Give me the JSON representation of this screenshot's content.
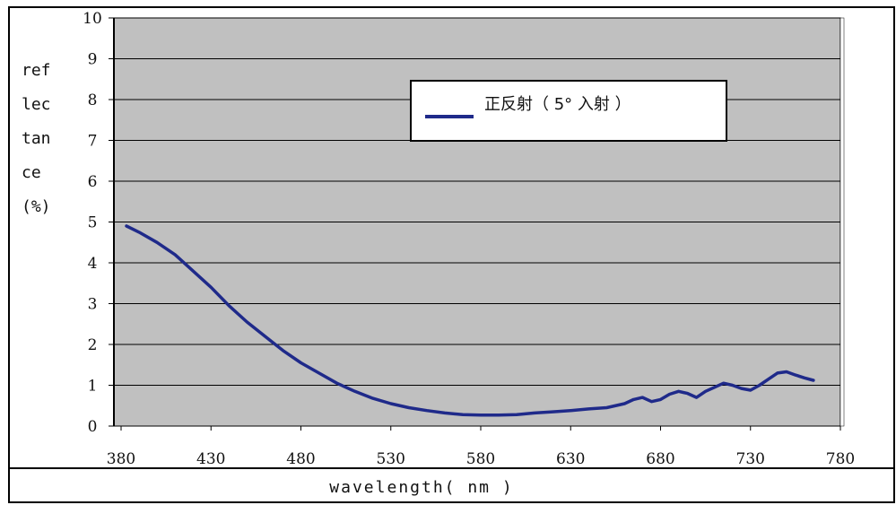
{
  "chart_data": {
    "type": "line",
    "xlabel": "wavelength( nm )",
    "ylabel_lines": [
      "ref",
      "lec",
      "tan",
      "ce",
      "(%)"
    ],
    "xlim": [
      380,
      780
    ],
    "ylim": [
      0,
      10
    ],
    "x_ticks": [
      380,
      430,
      480,
      530,
      580,
      630,
      680,
      730,
      780
    ],
    "y_ticks": [
      0,
      1,
      2,
      3,
      4,
      5,
      6,
      7,
      8,
      9,
      10
    ],
    "y_tick_labels": [
      "0",
      "1",
      "2",
      "3",
      "4",
      "5",
      "6",
      "7",
      "8",
      "9",
      "10"
    ],
    "grid": "horizontal",
    "background": "#c0c0c0",
    "legend_position": "top-right",
    "series": [
      {
        "name": "正反射（ 5° 入射 ）",
        "color": "#1f2a8a",
        "x": [
          383,
          390,
          400,
          410,
          420,
          430,
          440,
          450,
          460,
          470,
          480,
          490,
          500,
          510,
          520,
          530,
          540,
          550,
          560,
          570,
          580,
          590,
          600,
          610,
          620,
          630,
          640,
          650,
          660,
          665,
          670,
          675,
          680,
          685,
          690,
          695,
          700,
          705,
          710,
          715,
          720,
          725,
          730,
          735,
          740,
          745,
          750,
          755,
          760,
          765
        ],
        "y": [
          4.9,
          4.75,
          4.5,
          4.2,
          3.8,
          3.4,
          2.95,
          2.55,
          2.2,
          1.85,
          1.55,
          1.3,
          1.05,
          0.85,
          0.68,
          0.55,
          0.45,
          0.38,
          0.32,
          0.28,
          0.27,
          0.27,
          0.28,
          0.32,
          0.35,
          0.38,
          0.42,
          0.45,
          0.55,
          0.65,
          0.7,
          0.6,
          0.65,
          0.78,
          0.85,
          0.8,
          0.7,
          0.85,
          0.95,
          1.05,
          1.0,
          0.92,
          0.88,
          1.0,
          1.15,
          1.3,
          1.33,
          1.25,
          1.18,
          1.12
        ]
      }
    ]
  }
}
